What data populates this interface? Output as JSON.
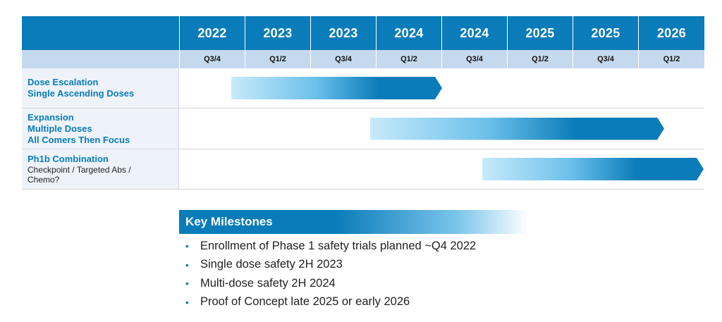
{
  "timeline": {
    "years": [
      "2022",
      "2023",
      "2023",
      "2024",
      "2024",
      "2025",
      "2025",
      "2026"
    ],
    "quarters": [
      "Q3/4",
      "Q1/2",
      "Q3/4",
      "Q1/2",
      "Q3/4",
      "Q1/2",
      "Q3/4",
      "Q1/2"
    ]
  },
  "phases": [
    {
      "title_lines": [
        "Dose Escalation",
        "Single Ascending Doses"
      ],
      "subtitle_lines": []
    },
    {
      "title_lines": [
        "Expansion",
        "Multiple Doses",
        "All Comers Then Focus"
      ],
      "subtitle_lines": []
    },
    {
      "title_lines": [
        "Ph1b Combination"
      ],
      "subtitle_lines": [
        "Checkpoint / Targeted Abs /",
        "Chemo?"
      ]
    }
  ],
  "milestones": {
    "title": "Key Milestones",
    "bullet": "•",
    "items": [
      "Enrollment of Phase 1 safety trials planned ~Q4 2022",
      "Single dose safety 2H 2023",
      "Multi-dose safety 2H 2024",
      "Proof of Concept late 2025 or early 2026"
    ]
  },
  "colors": {
    "header_blue": "#0a7cb9",
    "quarter_band": "#c5d9ee",
    "label_bg": "#eef3fa",
    "bar_start": "#c7eafb",
    "bar_end": "#0a7cb9"
  }
}
